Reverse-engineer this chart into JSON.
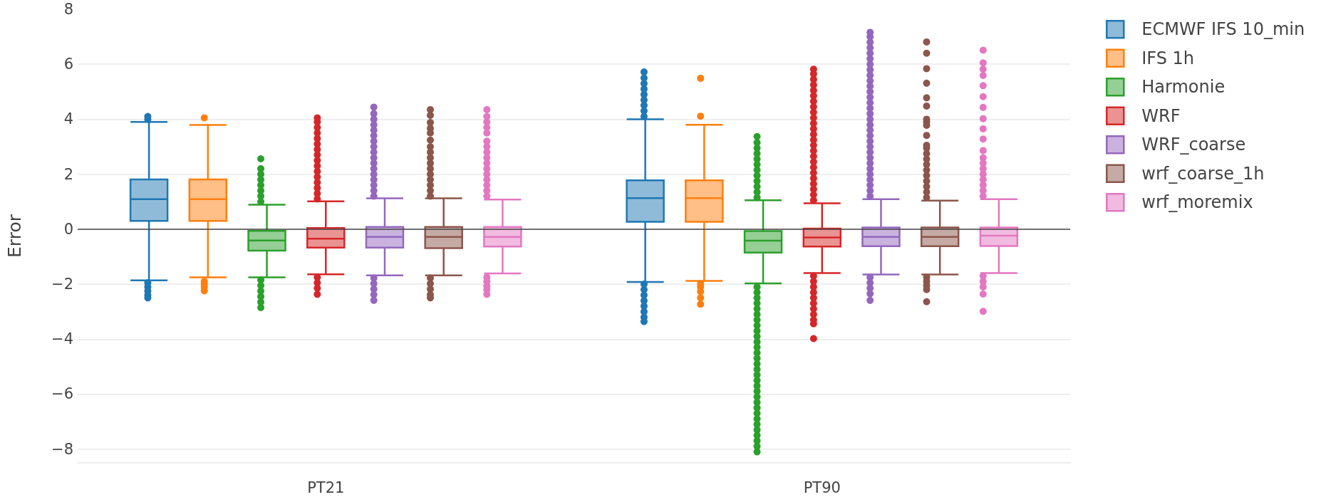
{
  "chart_data": {
    "type": "box",
    "ylabel": "Error",
    "categories": [
      "PT21",
      "PT90"
    ],
    "series": [
      {
        "name": "ECMWF IFS 10_min",
        "color": "#1f77b4",
        "boxes": [
          {
            "low": -1.86,
            "q1": 0.3,
            "median": 1.09,
            "q3": 1.81,
            "high": 3.9,
            "outliers": [
              4.0,
              4.1,
              -1.95,
              -2.1,
              -2.25,
              -2.4,
              -2.5
            ]
          },
          {
            "low": -1.92,
            "q1": 0.27,
            "median": 1.13,
            "q3": 1.78,
            "high": 4.0,
            "outliers": [
              4.1,
              4.3,
              4.5,
              4.7,
              4.9,
              5.1,
              5.3,
              5.5,
              5.72,
              -2.0,
              -2.2,
              -2.4,
              -2.6,
              -2.8,
              -3.0,
              -3.2,
              -3.36
            ]
          }
        ]
      },
      {
        "name": "IFS 1h",
        "color": "#ff7f0e",
        "boxes": [
          {
            "low": -1.75,
            "q1": 0.3,
            "median": 1.09,
            "q3": 1.81,
            "high": 3.79,
            "outliers": [
              4.05,
              -1.9,
              -2.0,
              -2.1,
              -2.24
            ]
          },
          {
            "low": -1.88,
            "q1": 0.27,
            "median": 1.13,
            "q3": 1.78,
            "high": 3.8,
            "outliers": [
              5.49,
              4.11,
              -1.98,
              -2.1,
              -2.27,
              -2.5,
              -2.73
            ]
          }
        ]
      },
      {
        "name": "Harmonie",
        "color": "#2ca02c",
        "boxes": [
          {
            "low": -1.75,
            "q1": -0.78,
            "median": -0.41,
            "q3": -0.06,
            "high": 0.89,
            "outliers": [
              1.0,
              1.2,
              1.4,
              1.6,
              1.8,
              2.0,
              2.2,
              2.56,
              -1.85,
              -2.05,
              -2.25,
              -2.45,
              -2.65,
              -2.85
            ]
          },
          {
            "low": -1.97,
            "q1": -0.85,
            "median": -0.42,
            "q3": -0.07,
            "high": 1.05,
            "outliers": [
              1.15,
              1.35,
              1.55,
              1.75,
              1.95,
              2.15,
              2.35,
              2.55,
              2.75,
              2.95,
              3.15,
              3.37,
              -2.1,
              -2.3,
              -2.5,
              -2.7,
              -2.9,
              -3.1,
              -3.3,
              -3.5,
              -3.7,
              -3.9,
              -4.1,
              -4.3,
              -4.5,
              -4.7,
              -4.9,
              -5.1,
              -5.3,
              -5.5,
              -5.7,
              -5.9,
              -6.1,
              -6.3,
              -6.5,
              -6.7,
              -6.9,
              -7.1,
              -7.3,
              -7.5,
              -7.7,
              -7.9,
              -8.1
            ]
          }
        ]
      },
      {
        "name": "WRF",
        "color": "#d62728",
        "boxes": [
          {
            "low": -1.64,
            "q1": -0.67,
            "median": -0.35,
            "q3": 0.04,
            "high": 1.01,
            "outliers": [
              1.1,
              1.3,
              1.5,
              1.7,
              1.9,
              2.1,
              2.3,
              2.5,
              2.7,
              2.9,
              3.1,
              3.3,
              3.5,
              3.7,
              3.9,
              4.05,
              -1.75,
              -1.95,
              -2.15,
              -2.37
            ]
          },
          {
            "low": -1.6,
            "q1": -0.63,
            "median": -0.3,
            "q3": 0.02,
            "high": 0.94,
            "outliers": [
              1.05,
              1.25,
              1.45,
              1.65,
              1.85,
              2.05,
              2.25,
              2.45,
              2.65,
              2.85,
              3.05,
              3.25,
              3.45,
              3.65,
              3.85,
              4.05,
              4.25,
              4.45,
              4.65,
              4.85,
              5.05,
              5.25,
              5.45,
              5.65,
              5.82,
              -1.7,
              -1.9,
              -2.1,
              -2.3,
              -2.5,
              -2.7,
              -2.9,
              -3.1,
              -3.3,
              -3.44,
              -3.98
            ]
          }
        ]
      },
      {
        "name": "WRF_coarse",
        "color": "#9467bd",
        "boxes": [
          {
            "low": -1.68,
            "q1": -0.67,
            "median": -0.28,
            "q3": 0.08,
            "high": 1.12,
            "outliers": [
              1.2,
              1.4,
              1.6,
              1.8,
              2.0,
              2.2,
              2.4,
              2.6,
              2.8,
              3.0,
              3.2,
              3.4,
              3.6,
              3.8,
              4.0,
              4.2,
              4.44,
              -1.78,
              -1.98,
              -2.18,
              -2.38,
              -2.59
            ]
          },
          {
            "low": -1.65,
            "q1": -0.62,
            "median": -0.28,
            "q3": 0.06,
            "high": 1.09,
            "outliers": [
              1.2,
              1.4,
              1.6,
              1.8,
              2.0,
              2.2,
              2.4,
              2.6,
              2.8,
              3.0,
              3.2,
              3.4,
              3.6,
              3.8,
              4.0,
              4.2,
              4.4,
              4.6,
              4.8,
              5.0,
              5.2,
              5.4,
              5.6,
              5.8,
              6.0,
              6.2,
              6.4,
              6.6,
              6.8,
              7.0,
              7.16,
              -1.75,
              -1.95,
              -2.15,
              -2.35,
              -2.59
            ]
          }
        ]
      },
      {
        "name": "wrf_coarse_1h",
        "color": "#8c564b",
        "boxes": [
          {
            "low": -1.68,
            "q1": -0.69,
            "median": -0.28,
            "q3": 0.08,
            "high": 1.12,
            "outliers": [
              1.2,
              1.4,
              1.6,
              1.8,
              2.0,
              2.2,
              2.4,
              2.6,
              2.8,
              3.0,
              3.24,
              3.5,
              3.67,
              3.88,
              4.14,
              4.35,
              -1.78,
              -1.98,
              -2.18,
              -2.38,
              -2.5
            ]
          },
          {
            "low": -1.65,
            "q1": -0.62,
            "median": -0.28,
            "q3": 0.06,
            "high": 1.04,
            "outliers": [
              1.15,
              1.35,
              1.55,
              1.75,
              1.95,
              2.15,
              2.35,
              2.55,
              2.75,
              2.95,
              3.05,
              3.41,
              3.78,
              3.9,
              4.0,
              4.48,
              4.78,
              5.31,
              5.84,
              6.4,
              6.81,
              -1.75,
              -1.9,
              -2.05,
              -2.2,
              -2.64
            ]
          }
        ]
      },
      {
        "name": "wrf_moremix",
        "color": "#e377c2",
        "boxes": [
          {
            "low": -1.61,
            "q1": -0.63,
            "median": -0.28,
            "q3": 0.08,
            "high": 1.08,
            "outliers": [
              1.2,
              1.4,
              1.6,
              1.8,
              2.0,
              2.2,
              2.4,
              2.6,
              2.8,
              3.0,
              3.2,
              3.5,
              3.7,
              3.9,
              4.1,
              4.35,
              -1.75,
              -1.9,
              -2.07,
              -2.2,
              -2.37
            ]
          },
          {
            "low": -1.6,
            "q1": -0.61,
            "median": -0.24,
            "q3": 0.06,
            "high": 1.09,
            "outliers": [
              1.2,
              1.4,
              1.6,
              1.8,
              2.0,
              2.2,
              2.4,
              2.6,
              2.86,
              3.28,
              3.65,
              4.02,
              4.43,
              4.82,
              5.22,
              5.59,
              5.82,
              6.05,
              6.51,
              -1.7,
              -1.9,
              -2.1,
              -2.36,
              -2.99
            ]
          }
        ]
      }
    ],
    "ylim": [
      -8.5,
      8
    ],
    "yticks": [
      {
        "value": -8,
        "label": "−8"
      },
      {
        "value": -6,
        "label": "−6"
      },
      {
        "value": -4,
        "label": "−4"
      },
      {
        "value": -2,
        "label": "−2"
      },
      0,
      2,
      4,
      6,
      8
    ],
    "grid": "y",
    "legend": "top right",
    "ref_lines": [
      {
        "axis": "y",
        "value": 0,
        "color": "#444444"
      }
    ]
  }
}
